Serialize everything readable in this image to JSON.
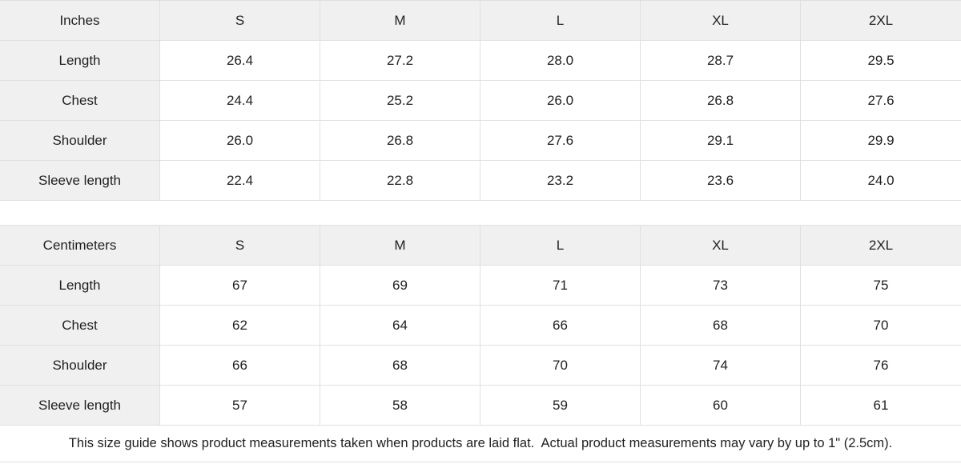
{
  "colors": {
    "header_bg": "#f0f0f0",
    "border": "#e0e0e0",
    "text": "#1f1f1f",
    "page_bg": "#ffffff"
  },
  "chart_data": [
    {
      "type": "table",
      "unit_label": "Inches",
      "sizes": [
        "S",
        "M",
        "L",
        "XL",
        "2XL"
      ],
      "rows": [
        {
          "label": "Length",
          "values": [
            "26.4",
            "27.2",
            "28.0",
            "28.7",
            "29.5"
          ]
        },
        {
          "label": "Chest",
          "values": [
            "24.4",
            "25.2",
            "26.0",
            "26.8",
            "27.6"
          ]
        },
        {
          "label": "Shoulder",
          "values": [
            "26.0",
            "26.8",
            "27.6",
            "29.1",
            "29.9"
          ]
        },
        {
          "label": "Sleeve length",
          "values": [
            "22.4",
            "22.8",
            "23.2",
            "23.6",
            "24.0"
          ]
        }
      ]
    },
    {
      "type": "table",
      "unit_label": "Centimeters",
      "sizes": [
        "S",
        "M",
        "L",
        "XL",
        "2XL"
      ],
      "rows": [
        {
          "label": "Length",
          "values": [
            "67",
            "69",
            "71",
            "73",
            "75"
          ]
        },
        {
          "label": "Chest",
          "values": [
            "62",
            "64",
            "66",
            "68",
            "70"
          ]
        },
        {
          "label": "Shoulder",
          "values": [
            "66",
            "68",
            "70",
            "74",
            "76"
          ]
        },
        {
          "label": "Sleeve length",
          "values": [
            "57",
            "58",
            "59",
            "60",
            "61"
          ]
        }
      ]
    }
  ],
  "footnote": "This size guide shows product measurements taken when products are laid flat.  Actual product measurements may vary by up to 1\" (2.5cm)."
}
